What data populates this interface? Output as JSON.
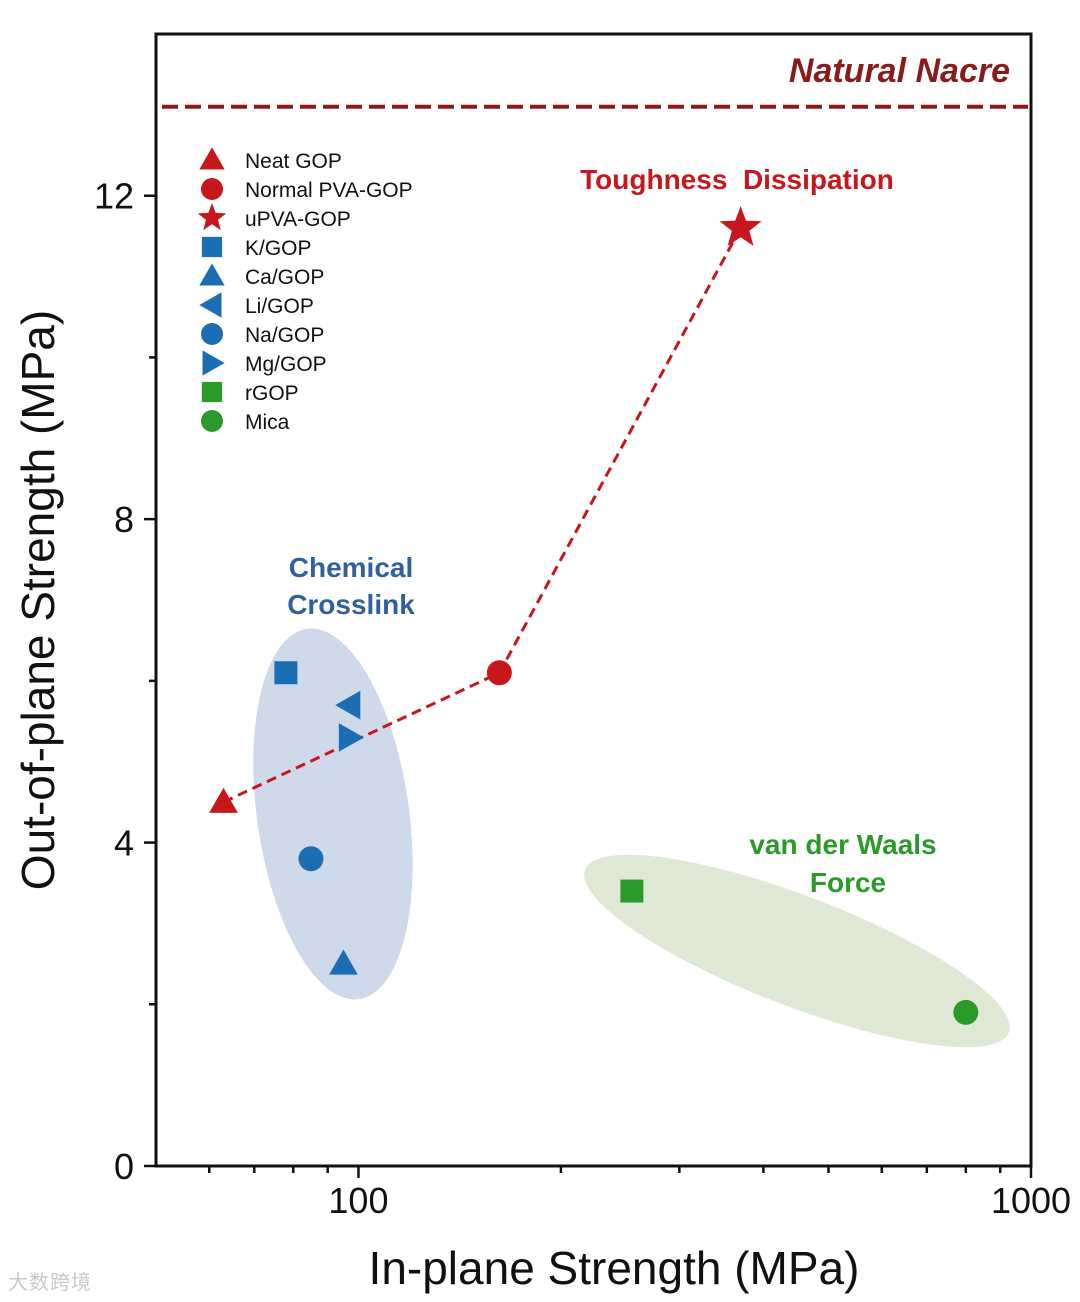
{
  "chart_data": {
    "type": "scatter",
    "xscale": "log",
    "xlim": [
      50,
      1000
    ],
    "ylim": [
      0,
      14
    ],
    "xlabel": "In-plane Strength (MPa)",
    "ylabel": "Out-of-plane Strength (MPa)",
    "x_ticks": [
      {
        "value": 100,
        "label": "100"
      },
      {
        "value": 1000,
        "label": "1000"
      }
    ],
    "y_ticks": [
      {
        "value": 0,
        "label": "0"
      },
      {
        "value": 4,
        "label": "4"
      },
      {
        "value": 8,
        "label": "8"
      },
      {
        "value": 12,
        "label": "12"
      }
    ],
    "colors": {
      "red": "#c8161d",
      "blue": "#1c6eb4",
      "green": "#2a9a2a",
      "nacre": "#8b1a1a",
      "blue_text": "#3060a0",
      "blue_ellipse": "#ced9e9",
      "green_ellipse": "#dfe8d5"
    },
    "series": [
      {
        "name": "Neat GOP",
        "marker": "triangle-up",
        "color": "#c8161d",
        "x": 63,
        "y": 4.5
      },
      {
        "name": "Normal PVA-GOP",
        "marker": "circle",
        "color": "#c8161d",
        "x": 162,
        "y": 6.1
      },
      {
        "name": "uPVA-GOP",
        "marker": "star",
        "color": "#c8161d",
        "x": 370,
        "y": 11.6
      },
      {
        "name": "K/GOP",
        "marker": "square",
        "color": "#1c6eb4",
        "x": 78,
        "y": 6.1
      },
      {
        "name": "Ca/GOP",
        "marker": "triangle-up",
        "color": "#1c6eb4",
        "x": 95,
        "y": 2.5
      },
      {
        "name": "Li/GOP",
        "marker": "triangle-left",
        "color": "#1c6eb4",
        "x": 97,
        "y": 5.7
      },
      {
        "name": "Na/GOP",
        "marker": "circle",
        "color": "#1c6eb4",
        "x": 85,
        "y": 3.8
      },
      {
        "name": "Mg/GOP",
        "marker": "triangle-right",
        "color": "#1c6eb4",
        "x": 97,
        "y": 5.3
      },
      {
        "name": "rGOP",
        "marker": "square",
        "color": "#2a9a2a",
        "x": 255,
        "y": 3.4
      },
      {
        "name": "Mica",
        "marker": "circle",
        "color": "#2a9a2a",
        "x": 800,
        "y": 1.9
      }
    ],
    "trend_line": {
      "label": "Toughness  Dissipation",
      "points": [
        [
          63,
          4.5
        ],
        [
          162,
          6.1
        ],
        [
          370,
          11.6
        ]
      ]
    },
    "reference_line": {
      "label": "Natural Nacre",
      "y": 13.1
    },
    "groups": [
      {
        "label_lines": [
          "Chemical",
          "Crosslink"
        ],
        "members": [
          "K/GOP",
          "Ca/GOP",
          "Li/GOP",
          "Na/GOP",
          "Mg/GOP"
        ]
      },
      {
        "label_lines": [
          "van der Waals",
          "Force"
        ],
        "members": [
          "rGOP",
          "Mica"
        ]
      }
    ],
    "legend_position": "top-left"
  },
  "watermark": "大数跨境"
}
